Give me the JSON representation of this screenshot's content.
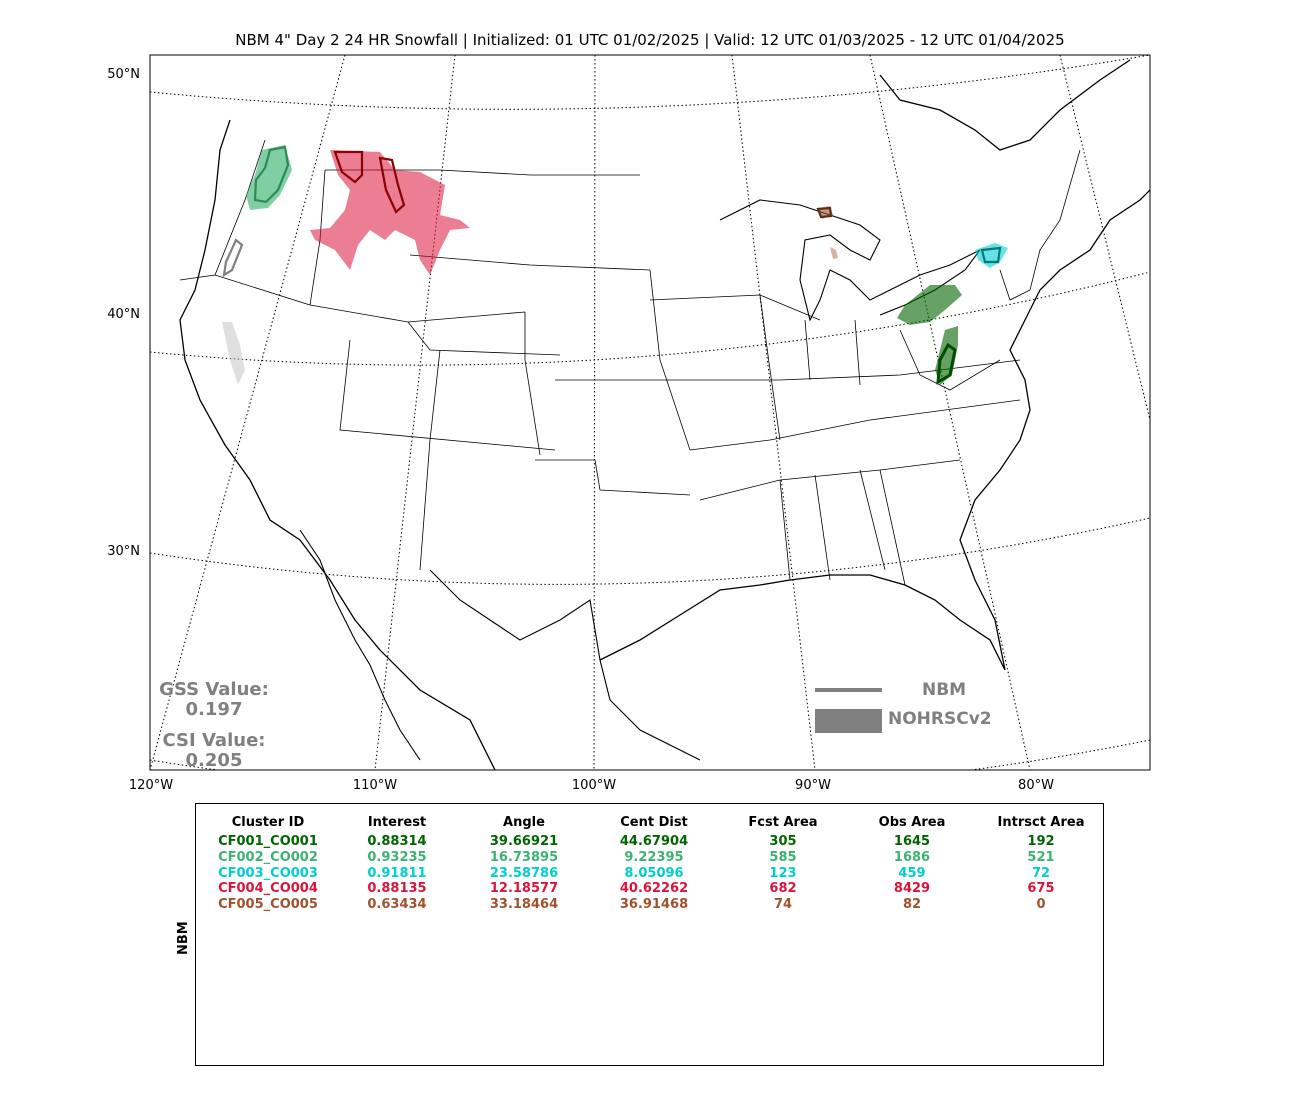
{
  "title": "NBM 4\" Day 2 24 HR Snowfall | Initialized: 01 UTC 01/02/2025 | Valid: 12 UTC 01/03/2025 - 12 UTC 01/04/2025",
  "map": {
    "lat_labels": [
      "50°N",
      "40°N",
      "30°N"
    ],
    "lon_labels": [
      "120°W",
      "110°W",
      "100°W",
      "90°W",
      "80°W"
    ]
  },
  "scores": {
    "gss_label": "GSS Value:",
    "gss_value": "0.197",
    "csi_label": "CSI Value:",
    "csi_value": "0.205"
  },
  "legend": {
    "forecast_label": "NBM",
    "observed_label": "NOHRSCv2",
    "color": "#808080"
  },
  "table": {
    "side_label": "NBM",
    "headers": [
      "Cluster ID",
      "Interest",
      "Angle",
      "Cent Dist",
      "Fcst Area",
      "Obs Area",
      "Intrsct Area"
    ],
    "rows": [
      {
        "color": "#006400",
        "cells": [
          "CF001_CO001",
          "0.88314",
          "39.66921",
          "44.67904",
          "305",
          "1645",
          "192"
        ]
      },
      {
        "color": "#3cb371",
        "cells": [
          "CF002_CO002",
          "0.93235",
          "16.73895",
          "9.22395",
          "585",
          "1686",
          "521"
        ]
      },
      {
        "color": "#00ced1",
        "cells": [
          "CF003_CO003",
          "0.91811",
          "23.58786",
          "8.05096",
          "123",
          "459",
          "72"
        ]
      },
      {
        "color": "#dc143c",
        "cells": [
          "CF004_CO004",
          "0.88135",
          "12.18577",
          "40.62262",
          "682",
          "8429",
          "675"
        ]
      },
      {
        "color": "#a0522d",
        "cells": [
          "CF005_CO005",
          "0.63434",
          "33.18464",
          "36.91468",
          "74",
          "82",
          "0"
        ]
      }
    ]
  }
}
